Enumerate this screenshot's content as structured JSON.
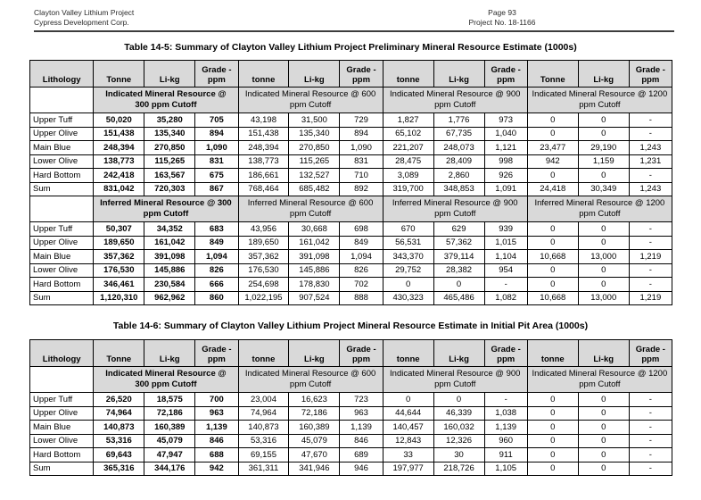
{
  "page_header": {
    "project": "Clayton Valley Lithium Project",
    "company": "Cypress Development Corp.",
    "page": "Page 93",
    "project_no": "Project No. 18-1166"
  },
  "tables": [
    {
      "title": "Table 14-5: Summary of Clayton Valley Lithium Project Preliminary Mineral Resource Estimate (1000s)",
      "columns": [
        "Lithology",
        "Tonne",
        "Li-kg",
        "Grade -\nppm",
        "tonne",
        "Li-kg",
        "Grade -\nppm",
        "tonne",
        "Li-kg",
        "Grade -\nppm",
        "Tonne",
        "Li-kg",
        "Grade -\nppm"
      ],
      "sections": [
        {
          "subheaders": [
            "Indicated Mineral Resource @ 300 ppm Cutoff",
            "Indicated Mineral Resource @ 600 ppm Cutoff",
            "Indicated Mineral Resource @ 900 ppm Cutoff",
            "Indicated Mineral Resource @ 1200 ppm Cutoff"
          ],
          "rows": [
            {
              "lithology": "Upper Tuff",
              "values": [
                "50,020",
                "35,280",
                "705",
                "43,198",
                "31,500",
                "729",
                "1,827",
                "1,776",
                "973",
                "0",
                "0",
                "-"
              ]
            },
            {
              "lithology": "Upper Olive",
              "values": [
                "151,438",
                "135,340",
                "894",
                "151,438",
                "135,340",
                "894",
                "65,102",
                "67,735",
                "1,040",
                "0",
                "0",
                "-"
              ]
            },
            {
              "lithology": "Main Blue",
              "values": [
                "248,394",
                "270,850",
                "1,090",
                "248,394",
                "270,850",
                "1,090",
                "221,207",
                "248,073",
                "1,121",
                "23,477",
                "29,190",
                "1,243"
              ]
            },
            {
              "lithology": "Lower Olive",
              "values": [
                "138,773",
                "115,265",
                "831",
                "138,773",
                "115,265",
                "831",
                "28,475",
                "28,409",
                "998",
                "942",
                "1,159",
                "1,231"
              ]
            },
            {
              "lithology": "Hard Bottom",
              "values": [
                "242,418",
                "163,567",
                "675",
                "186,661",
                "132,527",
                "710",
                "3,089",
                "2,860",
                "926",
                "0",
                "0",
                "-"
              ]
            },
            {
              "lithology": "Sum",
              "values": [
                "831,042",
                "720,303",
                "867",
                "768,464",
                "685,482",
                "892",
                "319,700",
                "348,853",
                "1,091",
                "24,418",
                "30,349",
                "1,243"
              ]
            }
          ]
        },
        {
          "subheaders": [
            "Inferred Mineral Resource @ 300 ppm Cutoff",
            "Inferred Mineral Resource @ 600 ppm Cutoff",
            "Inferred Mineral Resource @ 900 ppm Cutoff",
            "Inferred Mineral Resource @ 1200 ppm Cutoff"
          ],
          "rows": [
            {
              "lithology": "Upper Tuff",
              "values": [
                "50,307",
                "34,352",
                "683",
                "43,956",
                "30,668",
                "698",
                "670",
                "629",
                "939",
                "0",
                "0",
                "-"
              ]
            },
            {
              "lithology": "Upper Olive",
              "values": [
                "189,650",
                "161,042",
                "849",
                "189,650",
                "161,042",
                "849",
                "56,531",
                "57,362",
                "1,015",
                "0",
                "0",
                "-"
              ]
            },
            {
              "lithology": "Main Blue",
              "values": [
                "357,362",
                "391,098",
                "1,094",
                "357,362",
                "391,098",
                "1,094",
                "343,370",
                "379,114",
                "1,104",
                "10,668",
                "13,000",
                "1,219"
              ]
            },
            {
              "lithology": "Lower Olive",
              "values": [
                "176,530",
                "145,886",
                "826",
                "176,530",
                "145,886",
                "826",
                "29,752",
                "28,382",
                "954",
                "0",
                "0",
                "-"
              ]
            },
            {
              "lithology": "Hard Bottom",
              "values": [
                "346,461",
                "230,584",
                "666",
                "254,698",
                "178,830",
                "702",
                "0",
                "0",
                "-",
                "0",
                "0",
                "-"
              ]
            },
            {
              "lithology": "Sum",
              "values": [
                "1,120,310",
                "962,962",
                "860",
                "1,022,195",
                "907,524",
                "888",
                "430,323",
                "465,486",
                "1,082",
                "10,668",
                "13,000",
                "1,219"
              ]
            }
          ]
        }
      ]
    },
    {
      "title": "Table 14-6: Summary of Clayton Valley Lithium Project Mineral Resource Estimate in Initial Pit Area (1000s)",
      "columns": [
        "Lithology",
        "Tonne",
        "Li-kg",
        "Grade -\nppm",
        "tonne",
        "Li-kg",
        "Grade -\nppm",
        "tonne",
        "Li-kg",
        "Grade -\nppm",
        "tonne",
        "Li-kg",
        "Grade -\nppm"
      ],
      "sections": [
        {
          "subheaders": [
            "Indicated Mineral Resource @ 300 ppm Cutoff",
            "Indicated Mineral Resource @ 600 ppm Cutoff",
            "Indicated Mineral Resource @ 900 ppm Cutoff",
            "Indicated Mineral Resource @ 1200 ppm Cutoff"
          ],
          "rows": [
            {
              "lithology": "Upper Tuff",
              "values": [
                "26,520",
                "18,575",
                "700",
                "23,004",
                "16,623",
                "723",
                "0",
                "0",
                "-",
                "0",
                "0",
                "-"
              ]
            },
            {
              "lithology": "Upper Olive",
              "values": [
                "74,964",
                "72,186",
                "963",
                "74,964",
                "72,186",
                "963",
                "44,644",
                "46,339",
                "1,038",
                "0",
                "0",
                "-"
              ]
            },
            {
              "lithology": "Main Blue",
              "values": [
                "140,873",
                "160,389",
                "1,139",
                "140,873",
                "160,389",
                "1,139",
                "140,457",
                "160,032",
                "1,139",
                "0",
                "0",
                "-"
              ]
            },
            {
              "lithology": "Lower Olive",
              "values": [
                "53,316",
                "45,079",
                "846",
                "53,316",
                "45,079",
                "846",
                "12,843",
                "12,326",
                "960",
                "0",
                "0",
                "-"
              ]
            },
            {
              "lithology": "Hard Bottom",
              "values": [
                "69,643",
                "47,947",
                "688",
                "69,155",
                "47,670",
                "689",
                "33",
                "30",
                "911",
                "0",
                "0",
                "-"
              ]
            },
            {
              "lithology": "Sum",
              "values": [
                "365,316",
                "344,176",
                "942",
                "361,311",
                "341,946",
                "946",
                "197,977",
                "218,726",
                "1,105",
                "0",
                "0",
                "-"
              ]
            }
          ]
        }
      ]
    }
  ]
}
